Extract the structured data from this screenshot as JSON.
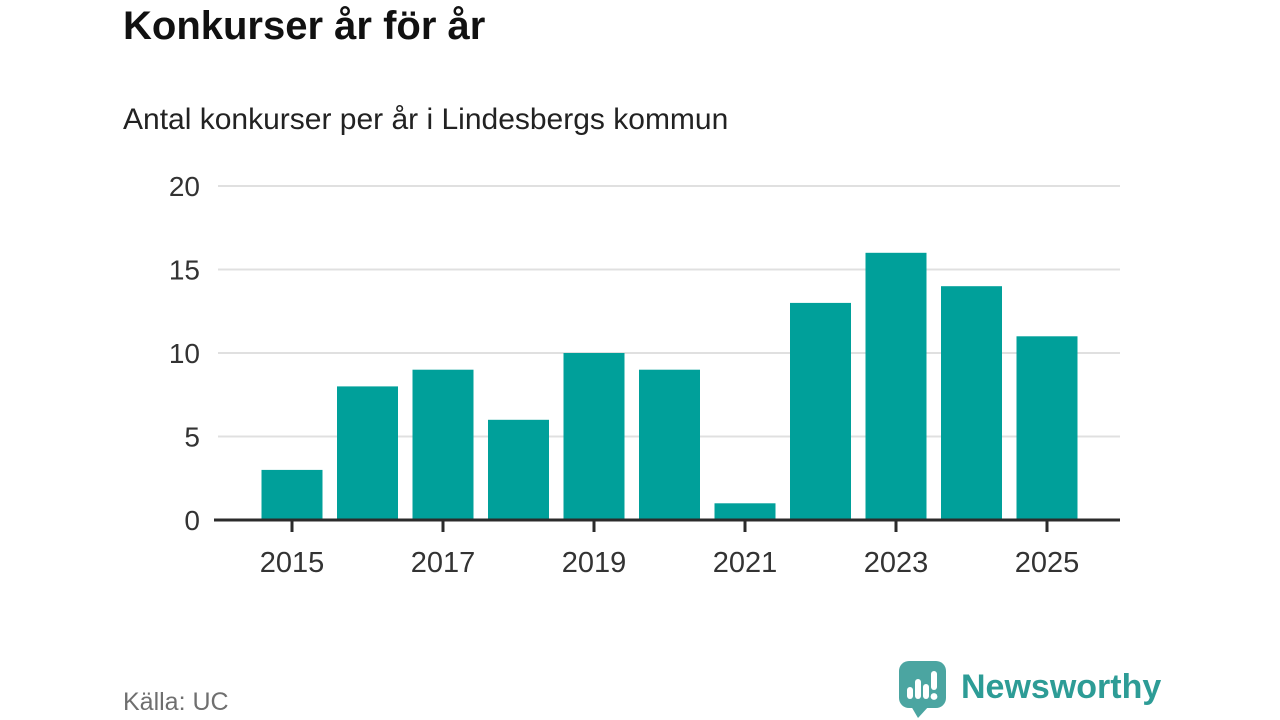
{
  "header": {
    "title": "Konkurser år för år",
    "subtitle": "Antal konkurser per år i Lindesbergs kommun"
  },
  "chart_data": {
    "type": "bar",
    "title": "Konkurser år för år",
    "subtitle": "Antal konkurser per år i Lindesbergs kommun",
    "categories": [
      2015,
      2016,
      2017,
      2018,
      2019,
      2020,
      2021,
      2022,
      2023,
      2024,
      2025
    ],
    "values": [
      3,
      8,
      9,
      6,
      10,
      9,
      1,
      13,
      16,
      14,
      11
    ],
    "xlabel": "",
    "ylabel": "",
    "ylim": [
      0,
      20
    ],
    "yticks": [
      0,
      5,
      10,
      15,
      20
    ],
    "xticks": [
      2015,
      2017,
      2019,
      2021,
      2023,
      2025
    ],
    "grid": true,
    "legend": false
  },
  "footer": {
    "source": "Källa: UC",
    "logo_text": "Newsworthy"
  },
  "colors": {
    "bar": "#00a09a",
    "axis": "#2b2b2b",
    "tick_label": "#333333",
    "grid": "#e0e0e0",
    "logo": "#4ba5a1",
    "logo_text": "#2d9c96"
  }
}
